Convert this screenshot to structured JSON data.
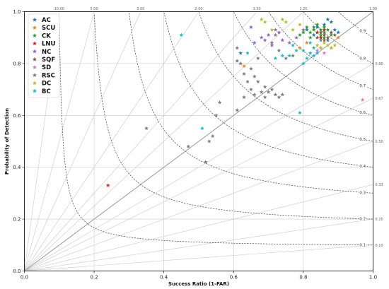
{
  "chart_data": {
    "type": "scatter",
    "xlabel": "Success Ratio (1-FAR)",
    "ylabel": "Probability of Detection",
    "xlim": [
      0,
      1
    ],
    "ylim": [
      0,
      1
    ],
    "x_ticks": [
      "0.0",
      "0.2",
      "0.4",
      "0.6",
      "0.8",
      "1.0"
    ],
    "y_ticks": [
      "0.0",
      "0.2",
      "0.4",
      "0.6",
      "0.8",
      "1.0"
    ],
    "grid": true,
    "legend_position": "top-left",
    "bias_lines": [
      {
        "value": 10.0,
        "label": "10.00"
      },
      {
        "value": 5.0,
        "label": "5.00"
      },
      {
        "value": 3.0,
        "label": "3.00"
      },
      {
        "value": 2.0,
        "label": "2.00"
      },
      {
        "value": 1.5,
        "label": "1.50"
      },
      {
        "value": 1.25,
        "label": "1.25"
      },
      {
        "value": 1.0,
        "label": "1.00"
      },
      {
        "value": 0.8,
        "label": "0.80"
      },
      {
        "value": 0.6667,
        "label": "0.67"
      },
      {
        "value": 0.5,
        "label": "0.50"
      },
      {
        "value": 0.3333,
        "label": "0.33"
      },
      {
        "value": 0.2,
        "label": "0.20"
      },
      {
        "value": 0.1,
        "label": "0.10"
      }
    ],
    "csi_lines": [
      {
        "value": 0.9,
        "label": "0.9"
      },
      {
        "value": 0.8,
        "label": "0.8"
      },
      {
        "value": 0.7,
        "label": "0.7"
      },
      {
        "value": 0.6,
        "label": "0.6"
      },
      {
        "value": 0.5,
        "label": "0.5"
      },
      {
        "value": 0.4,
        "label": "0.4"
      },
      {
        "value": 0.3,
        "label": "0.3"
      },
      {
        "value": 0.2,
        "label": "0.2"
      },
      {
        "value": 0.1,
        "label": "0.1"
      }
    ],
    "series": [
      {
        "name": "AC",
        "color": "#1f77b4",
        "points": [
          [
            0.81,
            0.93
          ],
          [
            0.86,
            0.95
          ],
          [
            0.87,
            0.97
          ],
          [
            0.88,
            0.96
          ],
          [
            0.89,
            0.93
          ],
          [
            0.83,
            0.91
          ],
          [
            0.84,
            0.94
          ],
          [
            0.9,
            0.92
          ],
          [
            0.85,
            0.9
          ],
          [
            0.87,
            0.89
          ],
          [
            0.62,
            0.84
          ]
        ]
      },
      {
        "name": "SCU",
        "color": "#ff7f0e",
        "points": [
          [
            0.63,
            0.79
          ],
          [
            0.79,
            0.86
          ],
          [
            0.85,
            0.91
          ],
          [
            0.9,
            0.9
          ],
          [
            0.81,
            0.88
          ]
        ]
      },
      {
        "name": "CK",
        "color": "#2ca02c",
        "points": [
          [
            0.82,
            0.92
          ],
          [
            0.83,
            0.93
          ],
          [
            0.84,
            0.92
          ],
          [
            0.85,
            0.93
          ],
          [
            0.86,
            0.92
          ],
          [
            0.87,
            0.93
          ],
          [
            0.86,
            0.94
          ],
          [
            0.84,
            0.95
          ],
          [
            0.83,
            0.94
          ],
          [
            0.85,
            0.91
          ],
          [
            0.82,
            0.9
          ],
          [
            0.8,
            0.92
          ],
          [
            0.79,
            0.91
          ],
          [
            0.81,
            0.94
          ],
          [
            0.86,
            0.9
          ],
          [
            0.88,
            0.91
          ]
        ]
      },
      {
        "name": "LNU",
        "color": "#d62728",
        "points": [
          [
            0.24,
            0.33
          ],
          [
            0.84,
            0.92
          ],
          [
            0.86,
            0.93
          ],
          [
            0.85,
            0.9
          ]
        ]
      },
      {
        "name": "NC",
        "color": "#9467bd",
        "points": [
          [
            0.65,
            0.94
          ],
          [
            0.7,
            0.91
          ],
          [
            0.68,
            0.9
          ],
          [
            0.72,
            0.93
          ],
          [
            0.74,
            0.89
          ],
          [
            0.76,
            0.88
          ],
          [
            0.71,
            0.87
          ],
          [
            0.69,
            0.89
          ],
          [
            0.73,
            0.92
          ],
          [
            0.8,
            0.93
          ],
          [
            0.78,
            0.9
          ],
          [
            0.66,
            0.88
          ]
        ]
      },
      {
        "name": "SQF",
        "color": "#8c564b",
        "points": [
          [
            0.86,
            0.91
          ],
          [
            0.87,
            0.9
          ],
          [
            0.88,
            0.92
          ],
          [
            0.85,
            0.92
          ],
          [
            0.89,
            0.91
          ],
          [
            0.84,
            0.9
          ],
          [
            0.86,
            0.89
          ]
        ]
      },
      {
        "name": "SD",
        "color": "#e377c2",
        "points": [
          [
            0.97,
            0.66
          ],
          [
            0.84,
            0.85
          ],
          [
            0.86,
            0.84
          ],
          [
            0.85,
            0.86
          ],
          [
            0.82,
            0.84
          ],
          [
            0.88,
            0.86
          ]
        ]
      },
      {
        "name": "RSC",
        "color": "#7f7f7f",
        "points": [
          [
            0.35,
            0.55
          ],
          [
            0.47,
            0.48
          ],
          [
            0.53,
            0.5
          ],
          [
            0.54,
            0.52
          ],
          [
            0.55,
            0.6
          ],
          [
            0.56,
            0.65
          ],
          [
            0.52,
            0.42
          ],
          [
            0.61,
            0.62
          ],
          [
            0.63,
            0.67
          ],
          [
            0.65,
            0.7
          ],
          [
            0.66,
            0.68
          ],
          [
            0.68,
            0.69
          ],
          [
            0.69,
            0.67
          ],
          [
            0.7,
            0.69
          ],
          [
            0.71,
            0.7
          ],
          [
            0.72,
            0.68
          ],
          [
            0.73,
            0.67
          ],
          [
            0.74,
            0.68
          ],
          [
            0.69,
            0.71
          ],
          [
            0.67,
            0.73
          ],
          [
            0.66,
            0.75
          ],
          [
            0.64,
            0.73
          ],
          [
            0.63,
            0.76
          ],
          [
            0.65,
            0.78
          ],
          [
            0.62,
            0.8
          ],
          [
            0.61,
            0.81
          ],
          [
            0.61,
            0.86
          ],
          [
            0.67,
            0.82
          ],
          [
            0.75,
            0.82
          ],
          [
            0.77,
            0.83
          ],
          [
            0.73,
            0.85
          ],
          [
            0.71,
            0.88
          ],
          [
            0.72,
            0.91
          ],
          [
            0.85,
            0.89
          ]
        ]
      },
      {
        "name": "DC",
        "color": "#bcbd22",
        "points": [
          [
            0.68,
            0.97
          ],
          [
            0.69,
            0.96
          ],
          [
            0.74,
            0.97
          ],
          [
            0.75,
            0.96
          ],
          [
            0.77,
            0.93
          ],
          [
            0.79,
            0.95
          ],
          [
            0.71,
            0.93
          ],
          [
            0.86,
            0.88
          ],
          [
            0.87,
            0.87
          ],
          [
            0.88,
            0.86
          ],
          [
            0.89,
            0.87
          ],
          [
            0.84,
            0.87
          ],
          [
            0.85,
            0.86
          ]
        ]
      },
      {
        "name": "BC",
        "color": "#17becf",
        "points": [
          [
            0.45,
            0.91
          ],
          [
            0.51,
            0.55
          ],
          [
            0.64,
            0.84
          ],
          [
            0.72,
            0.82
          ],
          [
            0.74,
            0.83
          ],
          [
            0.79,
            0.61
          ],
          [
            0.8,
            0.8
          ],
          [
            0.81,
            0.82
          ],
          [
            0.82,
            0.84
          ],
          [
            0.83,
            0.83
          ],
          [
            0.83,
            0.86
          ],
          [
            0.84,
            0.84
          ],
          [
            0.8,
            0.85
          ],
          [
            0.82,
            0.88
          ],
          [
            0.78,
            0.85
          ],
          [
            0.77,
            0.87
          ],
          [
            0.76,
            0.83
          ]
        ]
      }
    ]
  }
}
